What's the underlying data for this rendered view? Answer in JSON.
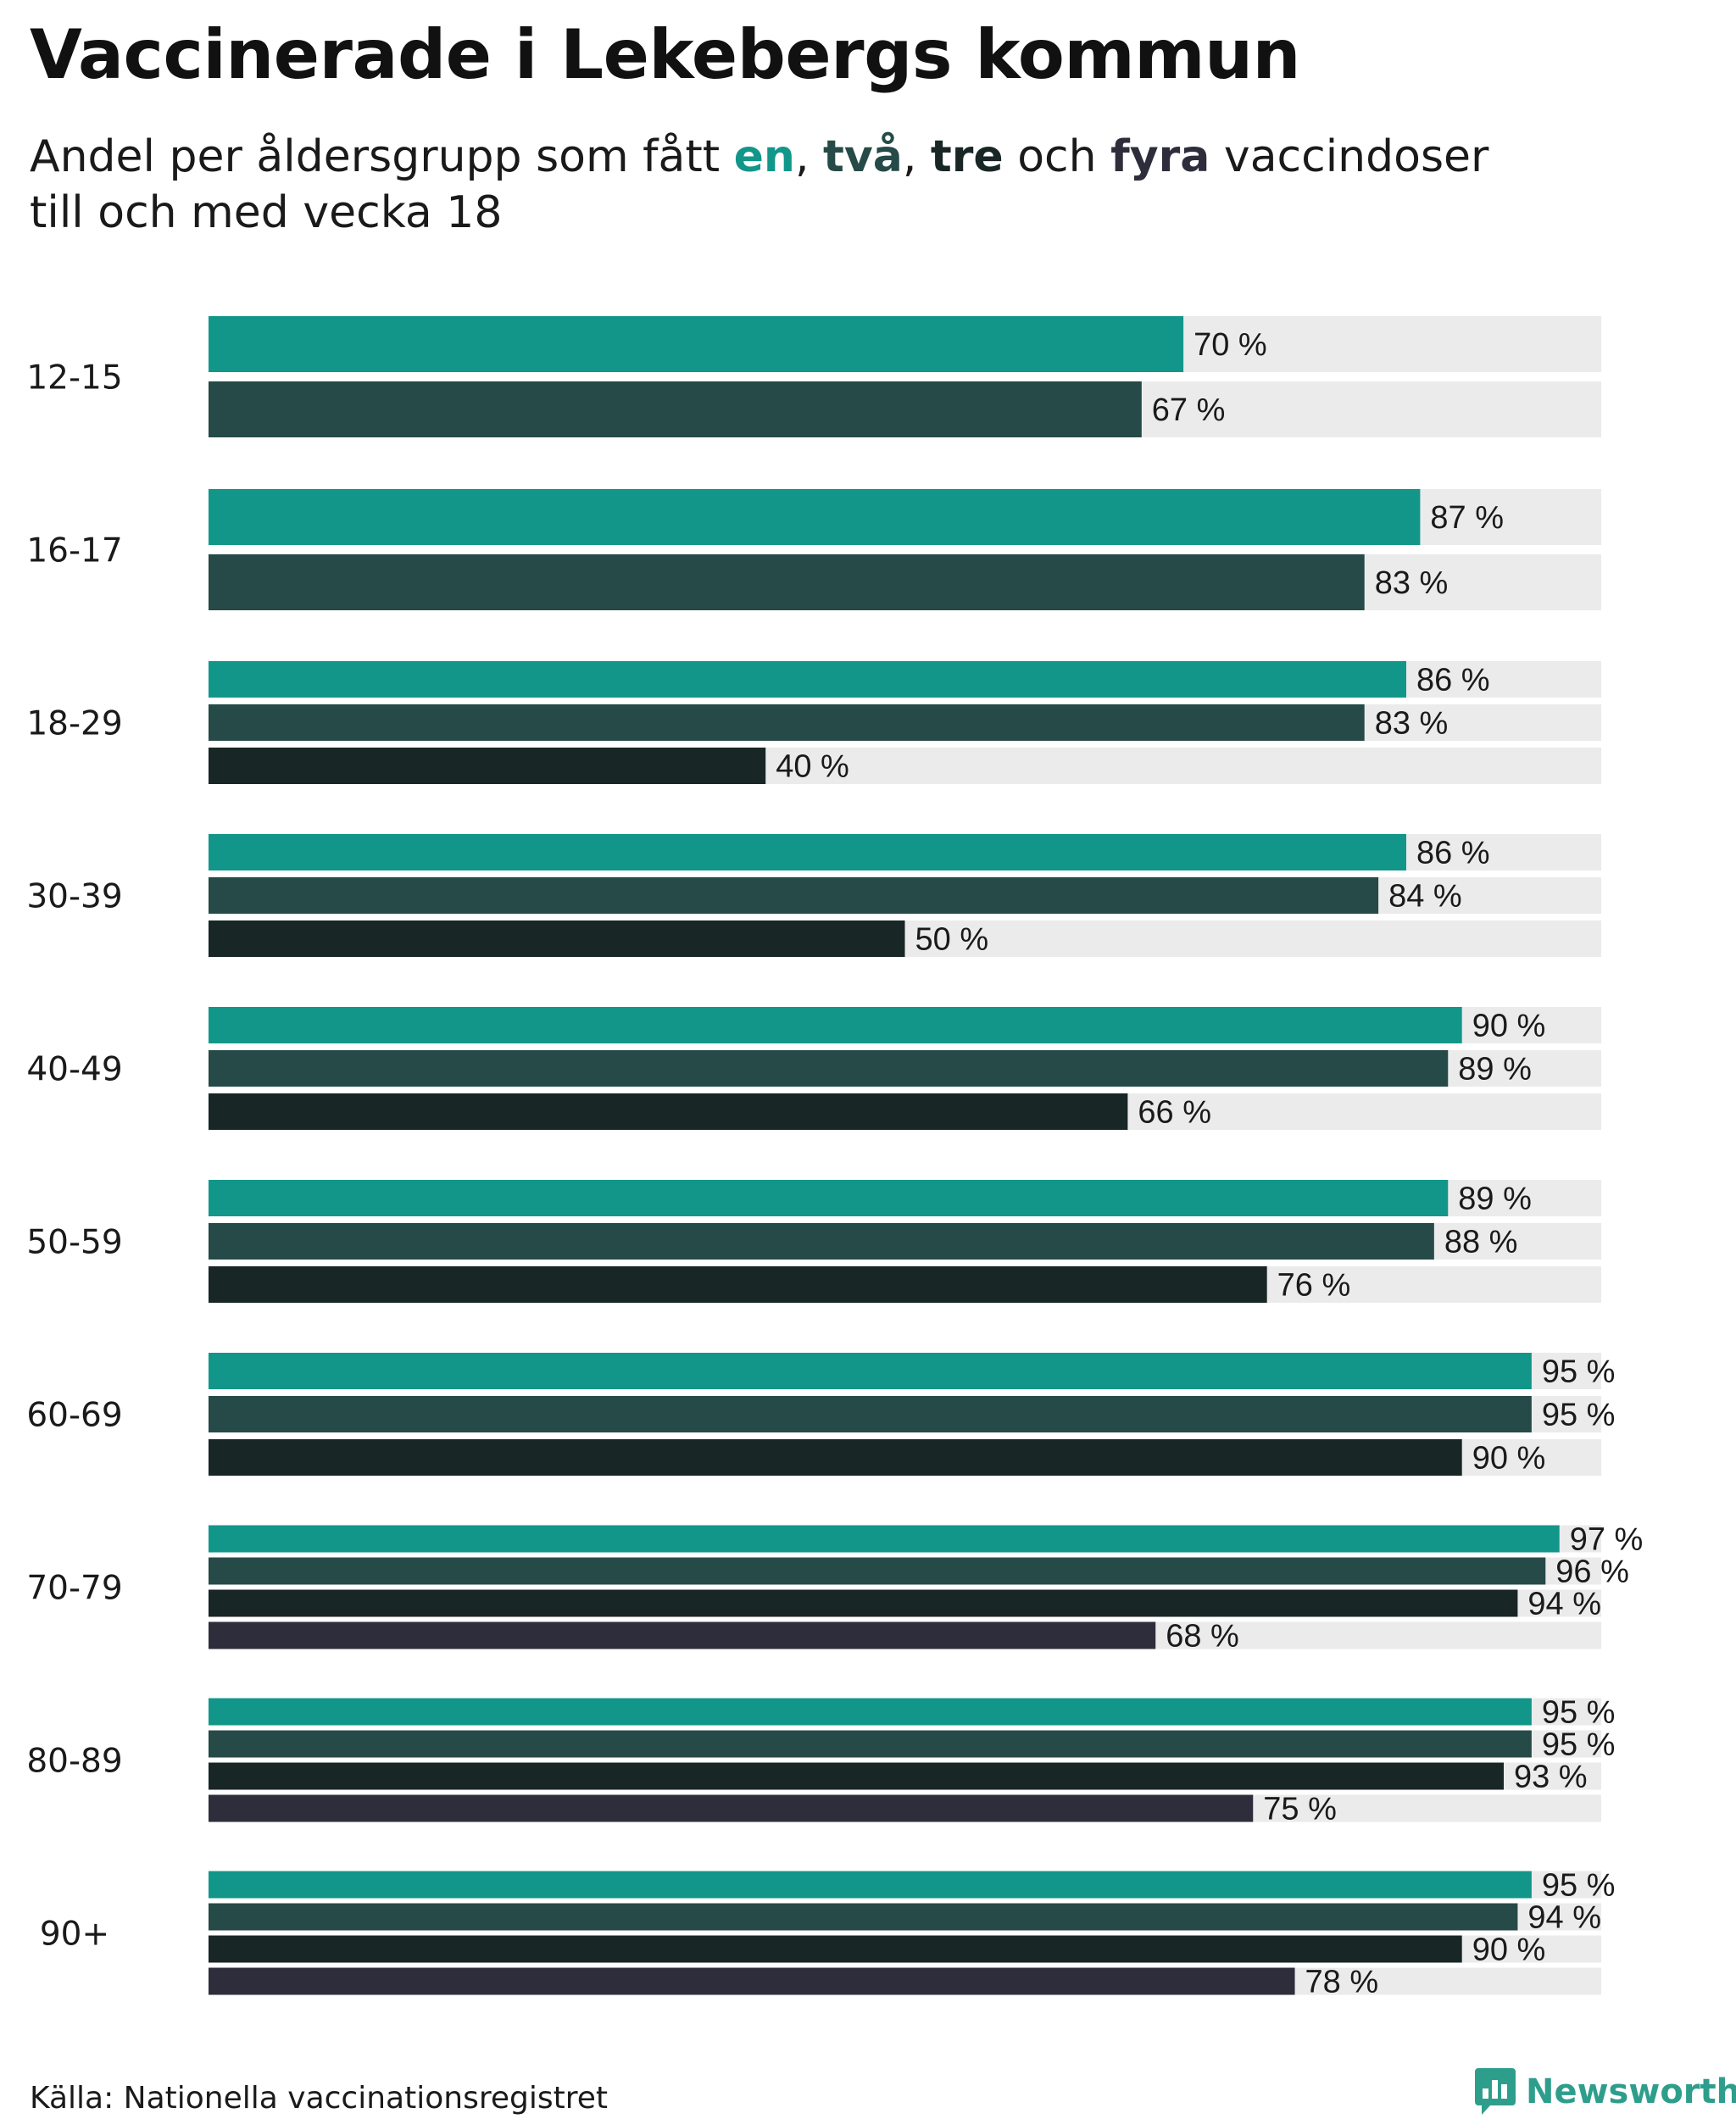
{
  "header": {
    "title": "Vaccinerade i Lekebergs kommun",
    "subtitle_prefix": "Andel per åldersgrupp som fått ",
    "kw1": "en",
    "sep1": ", ",
    "kw2": "två",
    "sep2": ", ",
    "kw3": "tre",
    "sep3": " och ",
    "kw4": "fyra",
    "subtitle_suffix": " vaccindoser",
    "subtitle_line2": "till och med vecka 18"
  },
  "colors": {
    "dose1": "#12968a",
    "dose2": "#264a48",
    "dose3": "#182625",
    "dose4": "#2e2d3b",
    "track": "#ebebeb"
  },
  "chart_data": {
    "type": "bar",
    "orientation": "horizontal",
    "title": "Vaccinerade i Lekebergs kommun",
    "value_suffix": " %",
    "xlim": [
      0,
      100
    ],
    "series_names": [
      "en dos",
      "två doser",
      "tre doser",
      "fyra doser"
    ],
    "categories": [
      "12-15",
      "16-17",
      "18-29",
      "30-39",
      "40-49",
      "50-59",
      "60-69",
      "70-79",
      "80-89",
      "90+"
    ],
    "groups": [
      {
        "label": "12-15",
        "values": [
          70,
          67
        ]
      },
      {
        "label": "16-17",
        "values": [
          87,
          83
        ]
      },
      {
        "label": "18-29",
        "values": [
          86,
          83,
          40
        ]
      },
      {
        "label": "30-39",
        "values": [
          86,
          84,
          50
        ]
      },
      {
        "label": "40-49",
        "values": [
          90,
          89,
          66
        ]
      },
      {
        "label": "50-59",
        "values": [
          89,
          88,
          76
        ]
      },
      {
        "label": "60-69",
        "values": [
          95,
          95,
          90
        ]
      },
      {
        "label": "70-79",
        "values": [
          97,
          96,
          94,
          68
        ]
      },
      {
        "label": "80-89",
        "values": [
          95,
          95,
          93,
          75
        ]
      },
      {
        "label": "90+",
        "values": [
          95,
          94,
          90,
          78
        ]
      }
    ]
  },
  "footer": {
    "source": "Källa: Nationella vaccinationsregistret",
    "brand": "Newsworthy"
  }
}
